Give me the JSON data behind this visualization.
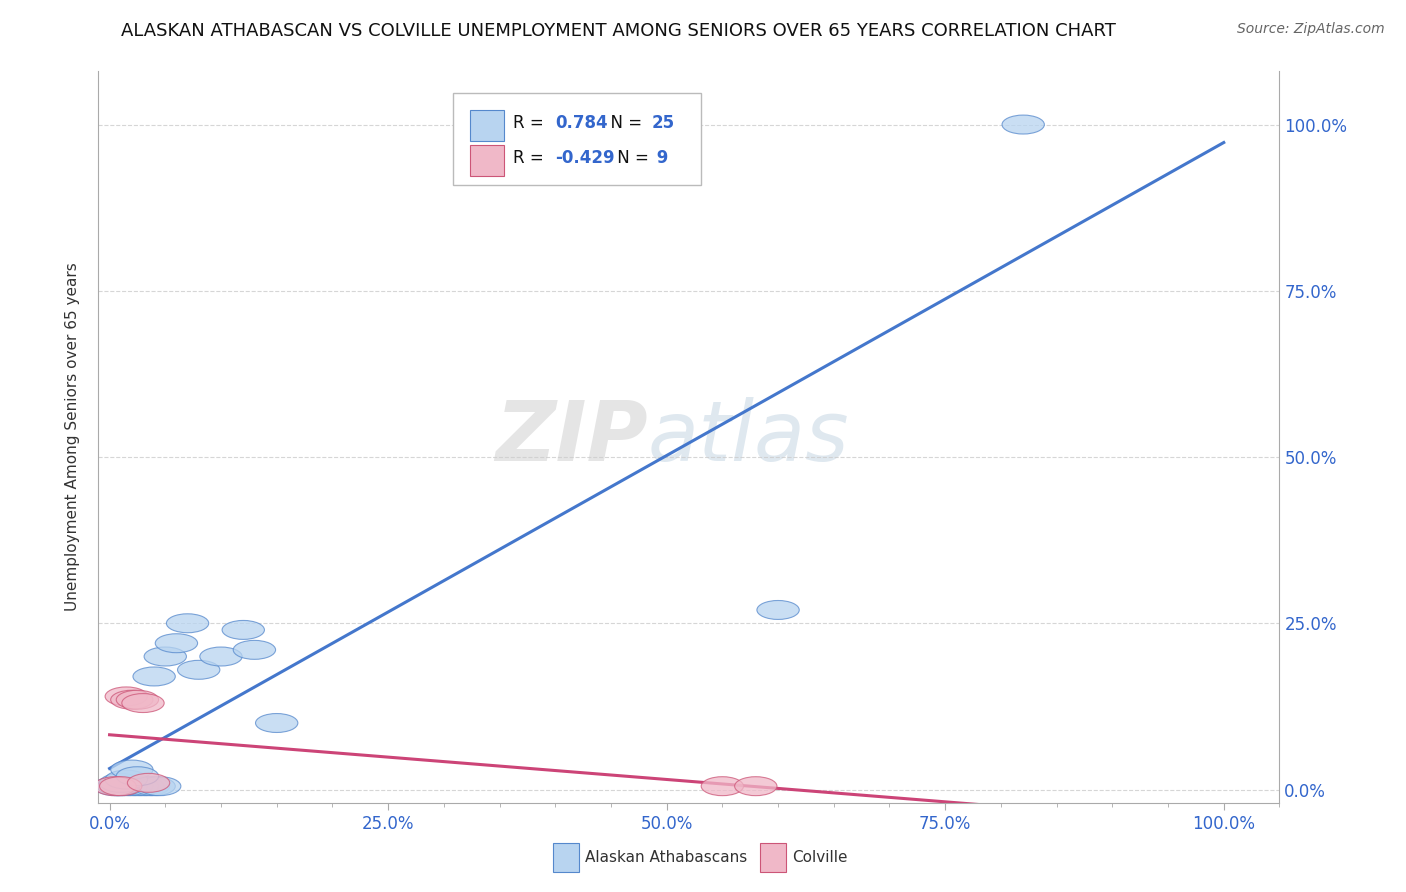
{
  "title": "ALASKAN ATHABASCAN VS COLVILLE UNEMPLOYMENT AMONG SENIORS OVER 65 YEARS CORRELATION CHART",
  "source": "Source: ZipAtlas.com",
  "ylabel": "Unemployment Among Seniors over 65 years",
  "r_blue": 0.784,
  "n_blue": 25,
  "r_pink": -0.429,
  "n_pink": 9,
  "blue_fill": "#b8d4f0",
  "blue_edge": "#5588cc",
  "pink_fill": "#f0b8c8",
  "pink_edge": "#cc5577",
  "trend_blue": "#4477cc",
  "trend_pink": "#cc4477",
  "watermark_zip": "#d0d0d0",
  "watermark_atlas": "#b8ccdd",
  "blue_points": [
    [
      0.01,
      0.005
    ],
    [
      0.015,
      0.005
    ],
    [
      0.02,
      0.005
    ],
    [
      0.025,
      0.005
    ],
    [
      0.03,
      0.005
    ],
    [
      0.035,
      0.005
    ],
    [
      0.04,
      0.005
    ],
    [
      0.045,
      0.005
    ],
    [
      0.005,
      0.005
    ],
    [
      0.008,
      0.005
    ],
    [
      0.01,
      0.01
    ],
    [
      0.015,
      0.015
    ],
    [
      0.02,
      0.03
    ],
    [
      0.025,
      0.02
    ],
    [
      0.04,
      0.17
    ],
    [
      0.05,
      0.2
    ],
    [
      0.06,
      0.22
    ],
    [
      0.07,
      0.25
    ],
    [
      0.08,
      0.18
    ],
    [
      0.1,
      0.2
    ],
    [
      0.12,
      0.24
    ],
    [
      0.13,
      0.21
    ],
    [
      0.15,
      0.1
    ],
    [
      0.6,
      0.27
    ],
    [
      0.82,
      1.0
    ]
  ],
  "pink_points": [
    [
      0.005,
      0.005
    ],
    [
      0.01,
      0.005
    ],
    [
      0.015,
      0.14
    ],
    [
      0.02,
      0.135
    ],
    [
      0.025,
      0.135
    ],
    [
      0.03,
      0.13
    ],
    [
      0.035,
      0.01
    ],
    [
      0.55,
      0.005
    ],
    [
      0.58,
      0.005
    ]
  ],
  "ylim": [
    -0.02,
    1.08
  ],
  "xlim": [
    -0.01,
    1.05
  ],
  "ytick_vals": [
    0.0,
    0.25,
    0.5,
    0.75,
    1.0
  ],
  "xtick_vals": [
    0.0,
    0.25,
    0.5,
    0.75,
    1.0
  ],
  "background_color": "#ffffff",
  "grid_color": "#cccccc"
}
